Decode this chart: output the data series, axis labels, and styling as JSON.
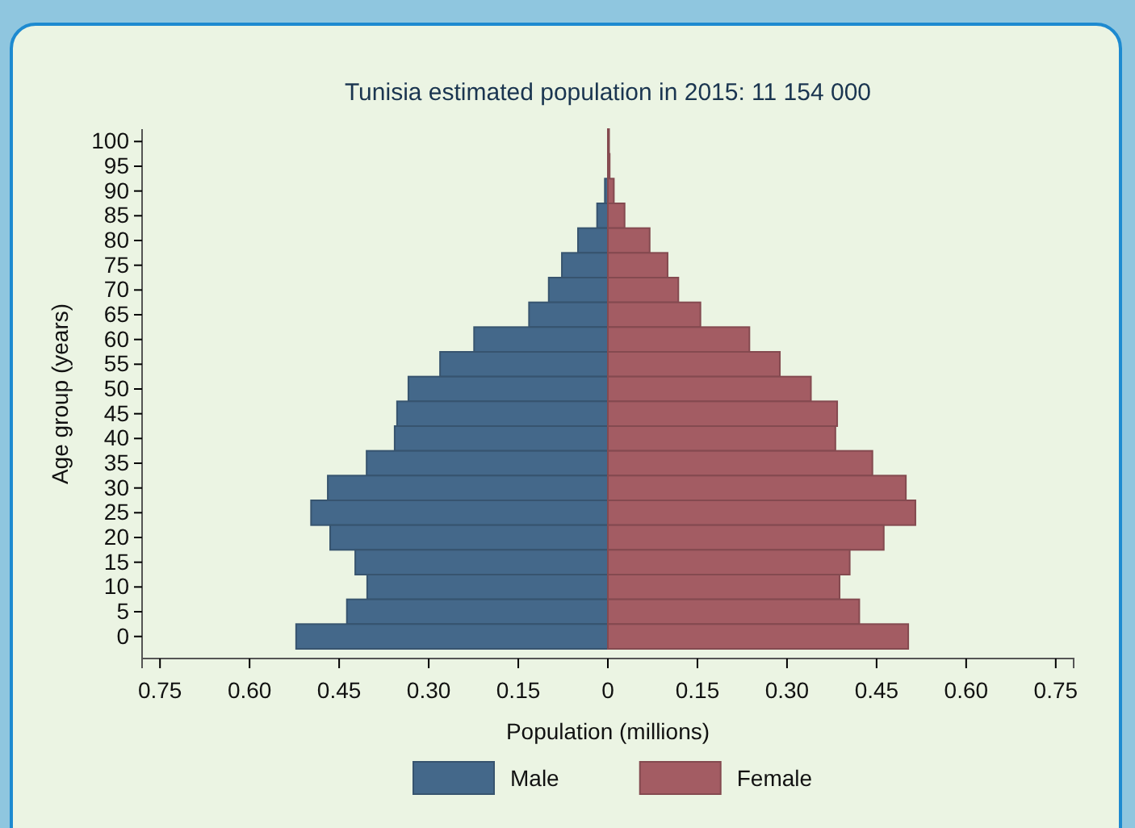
{
  "chart_data": {
    "type": "bar",
    "orientation": "horizontal",
    "title": "Tunisia estimated population in 2015: 11 154 000",
    "xlabel": "Population (millions)",
    "ylabel": "Age group (years)",
    "categories": [
      "100",
      "95",
      "90",
      "85",
      "80",
      "75",
      "70",
      "65",
      "60",
      "55",
      "50",
      "45",
      "40",
      "35",
      "30",
      "25",
      "20",
      "15",
      "10",
      "5",
      "0"
    ],
    "series": [
      {
        "name": "Male",
        "color": "#44688a",
        "values": [
          null,
          null,
          -0.005,
          -0.018,
          -0.05,
          -0.077,
          -0.099,
          -0.132,
          -0.224,
          -0.281,
          -0.334,
          -0.353,
          -0.357,
          -0.404,
          -0.469,
          -0.497,
          -0.465,
          -0.423,
          -0.403,
          -0.437,
          -0.522
        ]
      },
      {
        "name": "Female",
        "color": "#a35c63",
        "values": [
          0.002,
          0.003,
          0.01,
          0.028,
          0.07,
          0.1,
          0.118,
          0.155,
          0.237,
          0.288,
          0.34,
          0.384,
          0.381,
          0.443,
          0.499,
          0.515,
          0.462,
          0.405,
          0.388,
          0.421,
          0.503
        ]
      }
    ],
    "xlim": [
      -0.78,
      0.78
    ],
    "xticks": [
      {
        "value": -0.75,
        "label": "0.75"
      },
      {
        "value": -0.6,
        "label": "0.60"
      },
      {
        "value": -0.45,
        "label": "0.45"
      },
      {
        "value": -0.3,
        "label": "0.30"
      },
      {
        "value": -0.15,
        "label": "0.15"
      },
      0,
      {
        "value": 0.15,
        "label": "0.15"
      },
      {
        "value": 0.3,
        "label": "0.30"
      },
      {
        "value": 0.45,
        "label": "0.45"
      },
      {
        "value": 0.6,
        "label": "0.60"
      },
      {
        "value": 0.75,
        "label": "0.75"
      }
    ],
    "stacked": true,
    "grid": false,
    "legend": "bottom"
  }
}
